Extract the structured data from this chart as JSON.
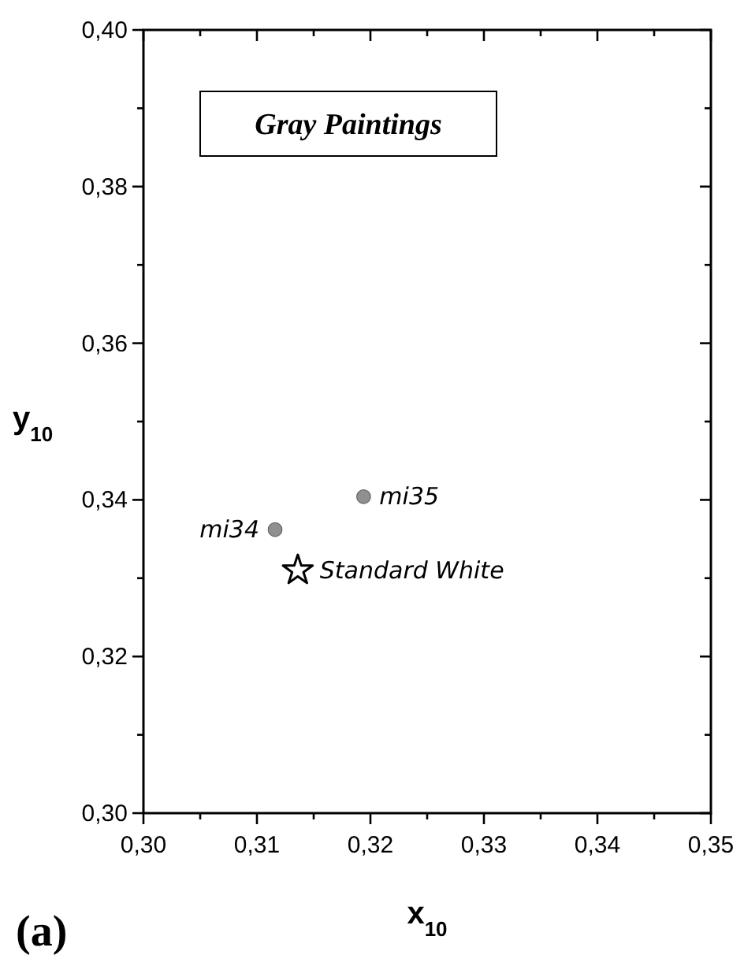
{
  "chart_data": {
    "type": "scatter",
    "xlabel": "x$_{10}$",
    "ylabel": "y$_{10}$",
    "annotations": [
      "Gray Paintings",
      "(a)"
    ],
    "xlim": [
      0.3,
      0.35
    ],
    "ylim": [
      0.3,
      0.4
    ],
    "xticks": [
      {
        "value": 0.3,
        "label": "0,30"
      },
      {
        "value": 0.305,
        "label": null
      },
      {
        "value": 0.31,
        "label": "0,31"
      },
      {
        "value": 0.315,
        "label": null
      },
      {
        "value": 0.32,
        "label": "0,32"
      },
      {
        "value": 0.325,
        "label": null
      },
      {
        "value": 0.33,
        "label": "0,33"
      },
      {
        "value": 0.335,
        "label": null
      },
      {
        "value": 0.34,
        "label": "0,34"
      },
      {
        "value": 0.345,
        "label": null
      },
      {
        "value": 0.35,
        "label": "0,35"
      }
    ],
    "yticks": [
      {
        "value": 0.3,
        "label": "0,30"
      },
      {
        "value": 0.31,
        "label": null
      },
      {
        "value": 0.32,
        "label": "0,32"
      },
      {
        "value": 0.33,
        "label": null
      },
      {
        "value": 0.34,
        "label": "0,34"
      },
      {
        "value": 0.35,
        "label": null
      },
      {
        "value": 0.36,
        "label": "0,36"
      },
      {
        "value": 0.37,
        "label": null
      },
      {
        "value": 0.38,
        "label": "0,38"
      },
      {
        "value": 0.39,
        "label": null
      },
      {
        "value": 0.4,
        "label": "0,40"
      }
    ],
    "grid": false,
    "series": [
      {
        "name": "mi34",
        "color": "#909090",
        "marker": "circle",
        "x": [
          0.3116
        ],
        "values": [
          0.3362
        ]
      },
      {
        "name": "mi35",
        "color": "#909090",
        "marker": "circle",
        "x": [
          0.3194
        ],
        "values": [
          0.3404
        ]
      },
      {
        "name": "Standard White",
        "color": "#ffffff",
        "marker": "star",
        "x": [
          0.3136
        ],
        "values": [
          0.331
        ]
      }
    ]
  }
}
